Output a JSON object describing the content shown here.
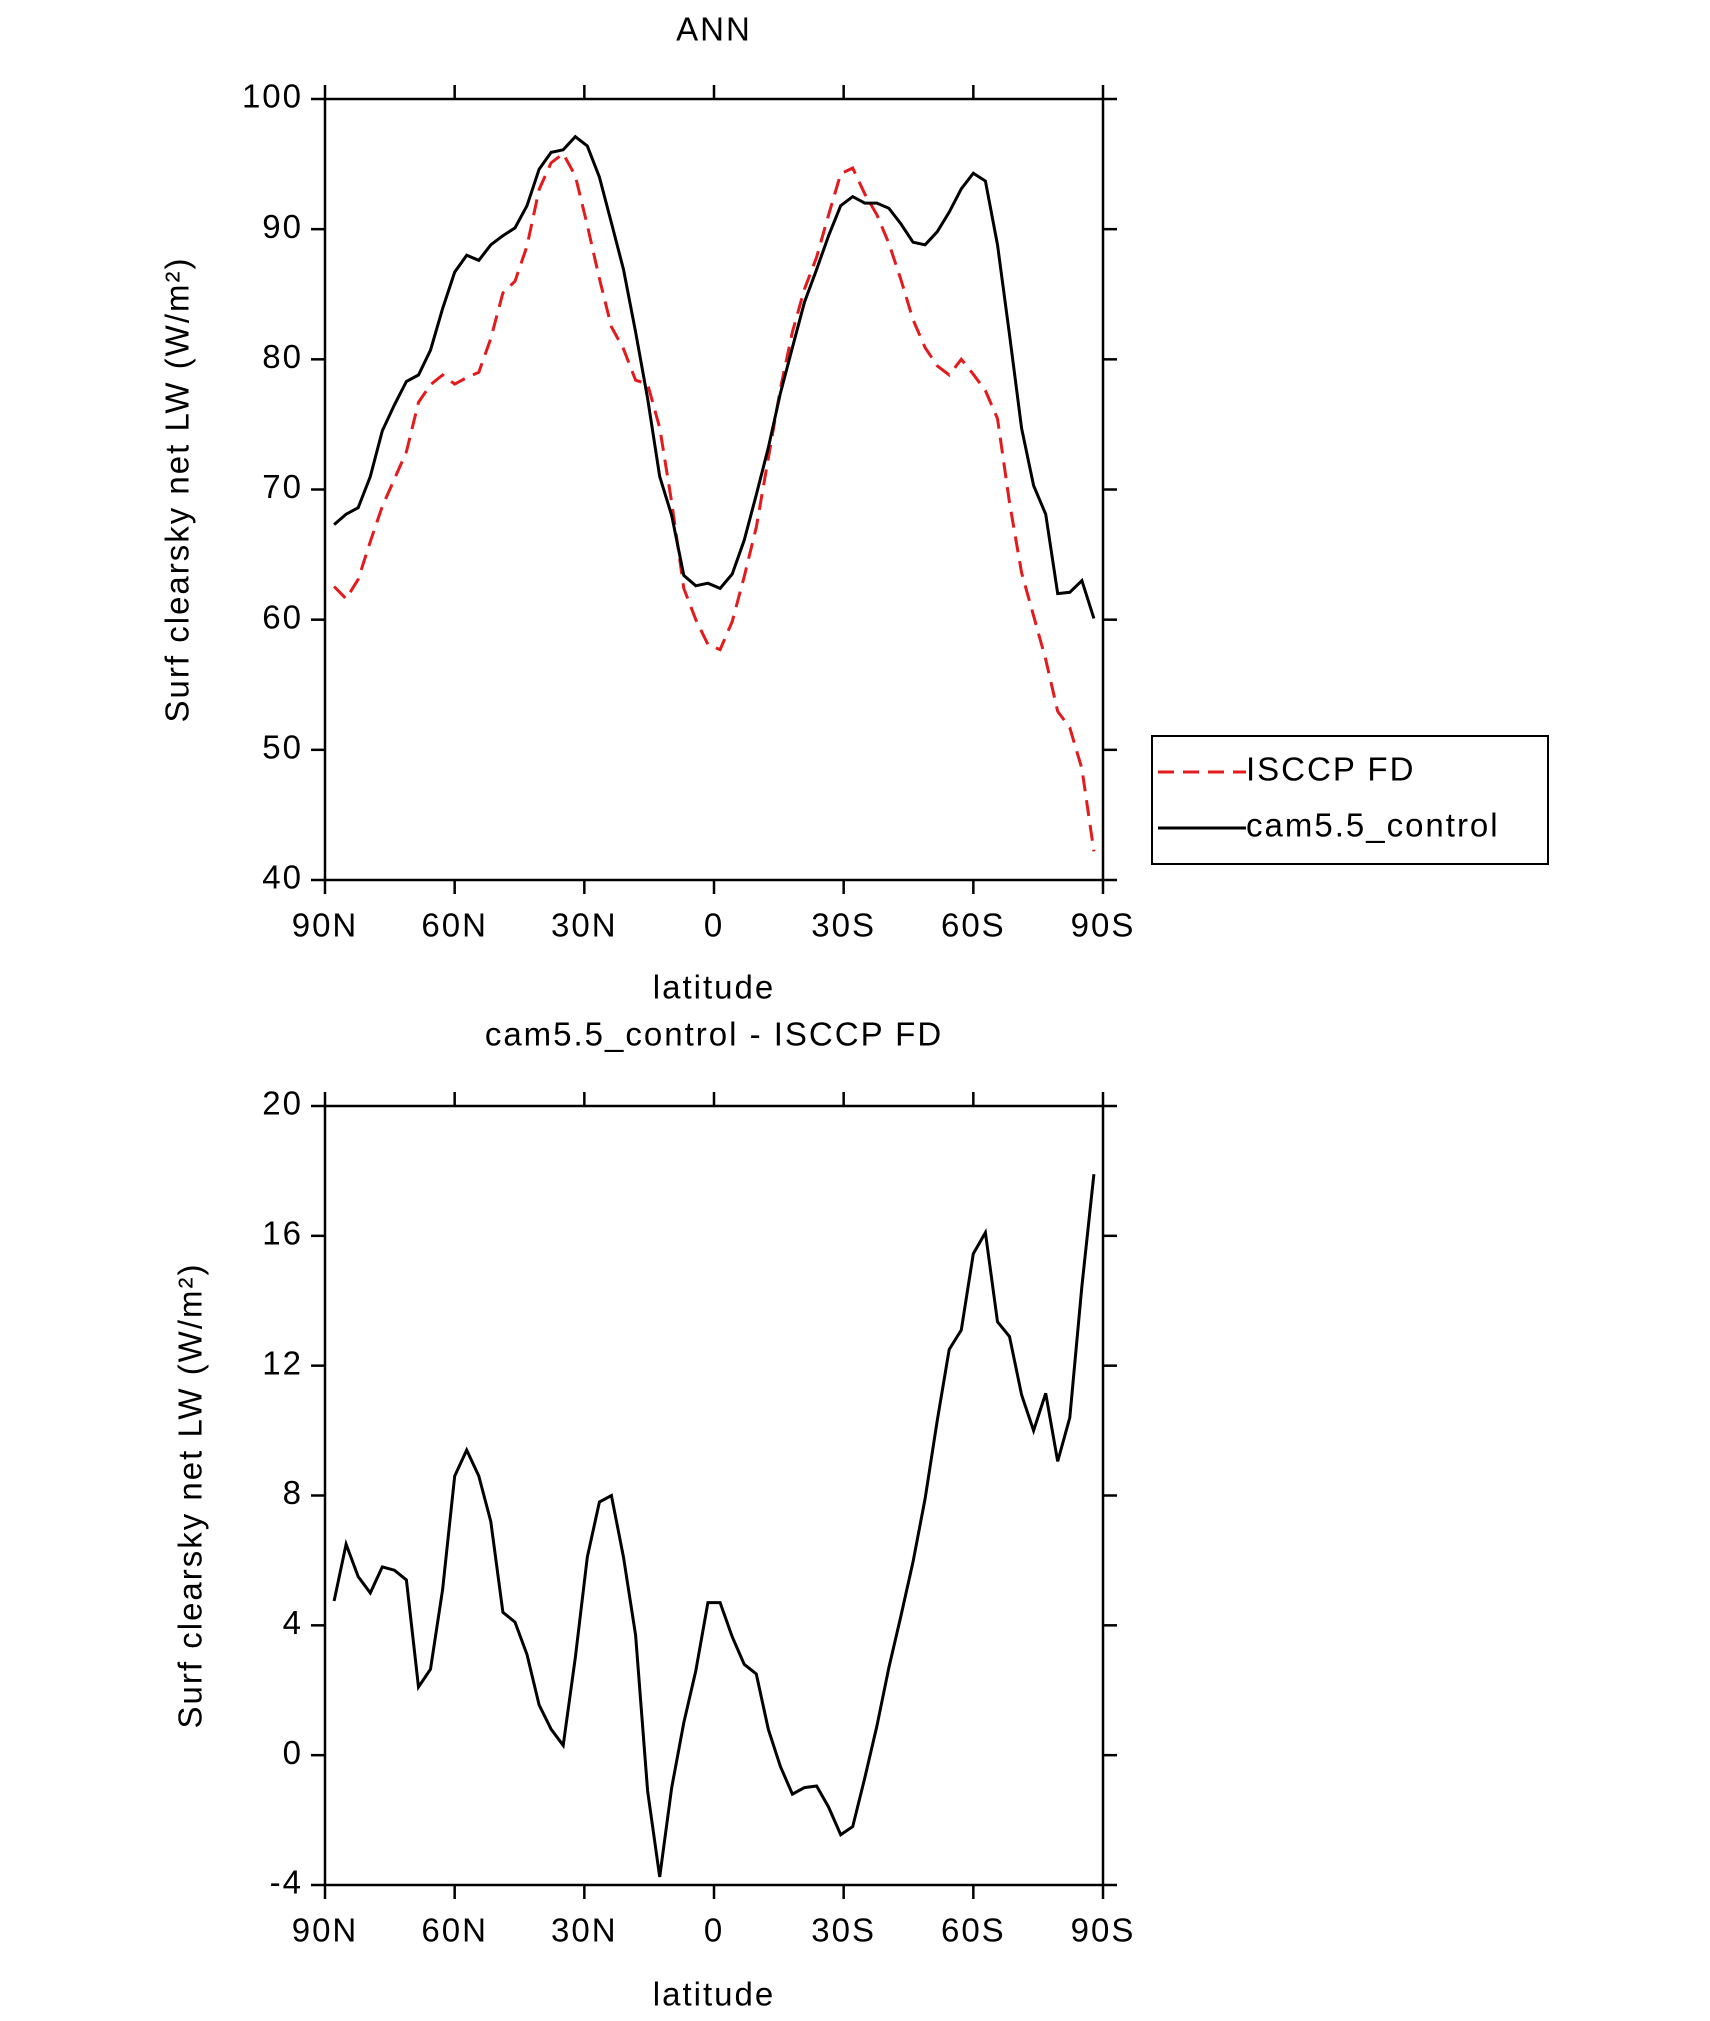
{
  "chart_data": [
    {
      "type": "line",
      "title": "ANN",
      "xlabel": "latitude",
      "ylabel": "Surf clearsky net LW (W/m²)",
      "x": [
        87.9,
        85.11,
        82.32,
        79.53,
        76.74,
        73.95,
        71.16,
        68.37,
        65.58,
        62.79,
        60,
        57.21,
        54.42,
        51.63,
        48.84,
        46.05,
        43.26,
        40.47,
        37.68,
        34.89,
        32.1,
        29.31,
        26.52,
        23.73,
        20.94,
        18.15,
        15.36,
        12.57,
        9.78,
        6.99,
        4.2,
        1.41,
        -1.41,
        -4.2,
        -6.99,
        -9.78,
        -12.57,
        -15.36,
        -18.15,
        -20.94,
        -23.73,
        -26.52,
        -29.31,
        -32.1,
        -34.89,
        -37.68,
        -40.47,
        -43.26,
        -46.05,
        -48.84,
        -51.63,
        -54.42,
        -57.21,
        -60,
        -62.79,
        -65.58,
        -68.37,
        -71.16,
        -73.95,
        -76.74,
        -79.53,
        -82.32,
        -85.11,
        -87.9
      ],
      "series": [
        {
          "name": "ISCCP FD",
          "color": "#e41a1c",
          "dash": true,
          "values": [
            62.55,
            61.6,
            63.1,
            66,
            68.7,
            70.8,
            72.9,
            76.7,
            78.05,
            78.8,
            78.1,
            78.6,
            79,
            81.6,
            85.1,
            86,
            88.7,
            93.05,
            95.1,
            95.8,
            94.1,
            90.3,
            86.2,
            82.5,
            80.8,
            78.4,
            78.1,
            74.75,
            69,
            62.4,
            60,
            58.1,
            57.7,
            59.85,
            63.3,
            67.1,
            72.4,
            77.75,
            82.1,
            85.4,
            87.85,
            91.1,
            94.25,
            94.7,
            92.7,
            91.1,
            88.9,
            86.1,
            83.05,
            80.9,
            79.5,
            78.8,
            80,
            78.85,
            77.6,
            75.45,
            69,
            63.6,
            60.3,
            56.95,
            52.95,
            51.7,
            48.55,
            42.2
          ]
        },
        {
          "name": "cam5.5_control",
          "color": "#000000",
          "dash": false,
          "values": [
            67.3,
            68.1,
            68.6,
            71,
            74.5,
            76.5,
            78.3,
            78.8,
            80.7,
            83.9,
            86.7,
            88,
            87.6,
            88.8,
            89.5,
            90.1,
            91.8,
            94.6,
            95.9,
            96.1,
            97.1,
            96.4,
            94,
            90.5,
            86.9,
            82.1,
            77,
            71,
            68,
            63.4,
            62.6,
            62.8,
            62.4,
            63.5,
            66.1,
            69.6,
            73.2,
            77.4,
            80.9,
            84.4,
            86.9,
            89.5,
            91.8,
            92.5,
            92,
            92,
            91.6,
            90.4,
            89,
            88.8,
            89.8,
            91.3,
            93.1,
            94.3,
            93.7,
            88.8,
            81.9,
            74.7,
            70.3,
            68.1,
            62,
            62.1,
            63,
            60.1
          ]
        }
      ],
      "xlim": [
        90,
        -90
      ],
      "xticks": [
        {
          "value": 90,
          "label": "90N"
        },
        {
          "value": 60,
          "label": "60N"
        },
        {
          "value": 30,
          "label": "30N"
        },
        0,
        {
          "value": -30,
          "label": "30S"
        },
        {
          "value": -60,
          "label": "60S"
        },
        {
          "value": -90,
          "label": "90S"
        }
      ],
      "ylim": [
        40,
        100
      ],
      "yticks": [
        40,
        50,
        60,
        70,
        80,
        90,
        100
      ],
      "grid": false
    },
    {
      "type": "line",
      "title": "cam5.5_control - ISCCP FD",
      "xlabel": "latitude",
      "ylabel": "Surf clearsky net LW (W/m²)",
      "x": [
        87.9,
        85.11,
        82.32,
        79.53,
        76.74,
        73.95,
        71.16,
        68.37,
        65.58,
        62.79,
        60,
        57.21,
        54.42,
        51.63,
        48.84,
        46.05,
        43.26,
        40.47,
        37.68,
        34.89,
        32.1,
        29.31,
        26.52,
        23.73,
        20.94,
        18.15,
        15.36,
        12.57,
        9.78,
        6.99,
        4.2,
        1.41,
        -1.41,
        -4.2,
        -6.99,
        -9.78,
        -12.57,
        -15.36,
        -18.15,
        -20.94,
        -23.73,
        -26.52,
        -29.31,
        -32.1,
        -34.89,
        -37.68,
        -40.47,
        -43.26,
        -46.05,
        -48.84,
        -51.63,
        -54.42,
        -57.21,
        -60,
        -62.79,
        -65.58,
        -68.37,
        -71.16,
        -73.95,
        -76.74,
        -79.53,
        -82.32,
        -85.11,
        -87.9
      ],
      "series": [
        {
          "color": "#000000",
          "dash": false,
          "values": [
            4.75,
            6.5,
            5.5,
            5,
            5.8,
            5.7,
            5.4,
            2.1,
            2.65,
            5.1,
            8.6,
            9.4,
            8.6,
            7.2,
            4.4,
            4.1,
            3.1,
            1.55,
            0.8,
            0.3,
            3,
            6.1,
            7.8,
            8,
            6.1,
            3.7,
            -1.1,
            -3.75,
            -1,
            1,
            2.6,
            4.7,
            4.7,
            3.65,
            2.8,
            2.5,
            0.8,
            -0.35,
            -1.2,
            -1,
            -0.95,
            -1.6,
            -2.45,
            -2.2,
            -0.7,
            0.9,
            2.7,
            4.3,
            5.95,
            7.9,
            10.3,
            12.5,
            13.1,
            15.45,
            16.1,
            13.35,
            12.9,
            11.1,
            10,
            11.15,
            9.05,
            10.4,
            14.45,
            17.9
          ]
        }
      ],
      "xlim": [
        90,
        -90
      ],
      "xticks": [
        {
          "value": 90,
          "label": "90N"
        },
        {
          "value": 60,
          "label": "60N"
        },
        {
          "value": 30,
          "label": "30N"
        },
        0,
        {
          "value": -30,
          "label": "30S"
        },
        {
          "value": -60,
          "label": "60S"
        },
        {
          "value": -90,
          "label": "90S"
        }
      ],
      "ylim": [
        -4,
        20
      ],
      "yticks": [
        -4,
        0,
        4,
        8,
        12,
        16,
        20
      ],
      "grid": false
    }
  ]
}
